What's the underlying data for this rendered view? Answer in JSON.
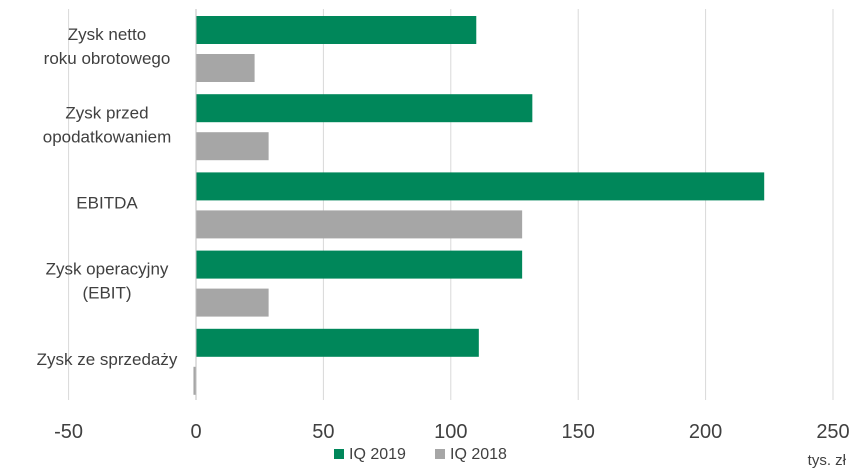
{
  "chart_data": {
    "type": "bar",
    "orientation": "horizontal",
    "categories": [
      [
        "Zysk netto",
        "roku obrotowego"
      ],
      [
        "Zysk przed",
        "opodatkowaniem"
      ],
      [
        "EBITDA"
      ],
      [
        "Zysk operacyjny",
        "(EBIT)"
      ],
      [
        "Zysk ze sprzedaży"
      ]
    ],
    "series": [
      {
        "name": "IQ 2019",
        "color": "#00875A",
        "values": [
          110,
          132,
          223,
          128,
          111
        ]
      },
      {
        "name": "IQ 2018",
        "color": "#A6A6A6",
        "values": [
          23,
          28.5,
          128,
          28.5,
          -1
        ]
      }
    ],
    "xlim": [
      -50,
      250
    ],
    "xticks": [
      -50,
      0,
      50,
      100,
      150,
      200,
      250
    ],
    "unit_label": "tys. zł",
    "grid": true,
    "legend_position": "bottom"
  }
}
